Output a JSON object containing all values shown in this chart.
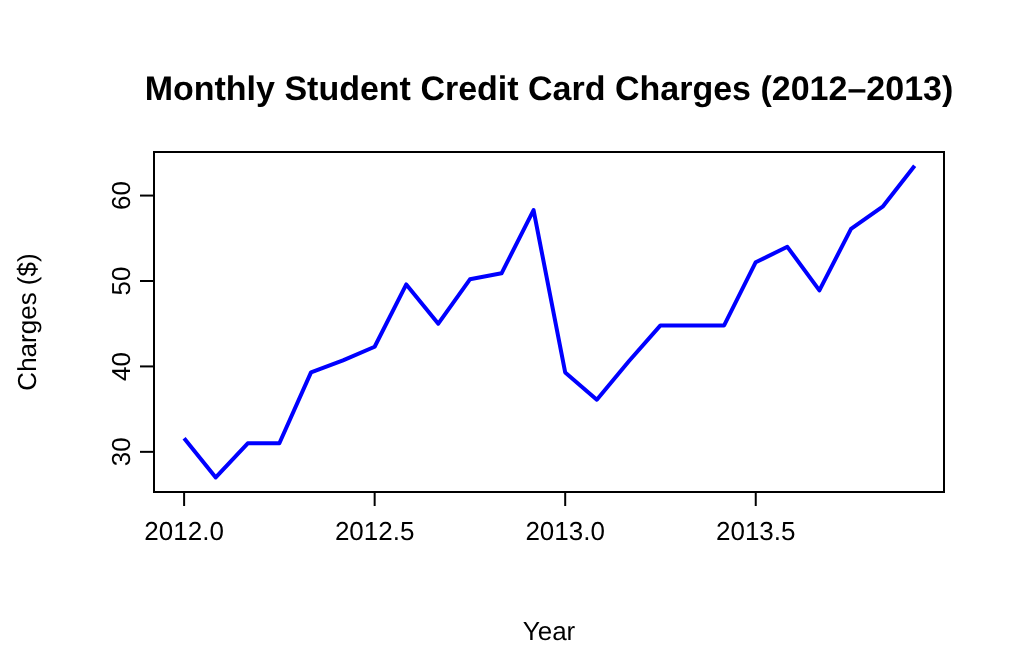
{
  "chart_data": {
    "type": "line",
    "title": "Monthly Student Credit Card Charges (2012–2013)",
    "xlabel": "Year",
    "ylabel": "Charges ($)",
    "x": [
      2012,
      2012.083,
      2012.167,
      2012.25,
      2012.333,
      2012.417,
      2012.5,
      2012.583,
      2012.667,
      2012.75,
      2012.833,
      2012.917,
      2013,
      2013.083,
      2013.167,
      2013.25,
      2013.333,
      2013.417,
      2013.5,
      2013.583,
      2013.667,
      2013.75,
      2013.833,
      2013.917
    ],
    "series": [
      {
        "color": "#0000ff",
        "values": [
          31.6,
          27.0,
          31.0,
          31.0,
          39.3,
          40.7,
          42.3,
          49.6,
          45.0,
          50.2,
          50.9,
          58.3,
          39.3,
          36.1,
          40.6,
          44.8,
          44.8,
          44.8,
          52.2,
          54.0,
          48.9,
          56.1,
          58.7,
          63.5
        ]
      }
    ],
    "xlim": [
      2011.921,
      2013.994
    ],
    "xticks": [
      {
        "value": 2012,
        "label": "2012.0"
      },
      {
        "value": 2012.5,
        "label": "2012.5"
      },
      {
        "value": 2013,
        "label": "2013.0"
      },
      {
        "value": 2013.5,
        "label": "2013.5"
      }
    ],
    "ylim": [
      25.3,
      65.1
    ],
    "yticks": [
      30,
      40,
      50,
      60
    ],
    "marker": "none",
    "line_style": "solid"
  }
}
